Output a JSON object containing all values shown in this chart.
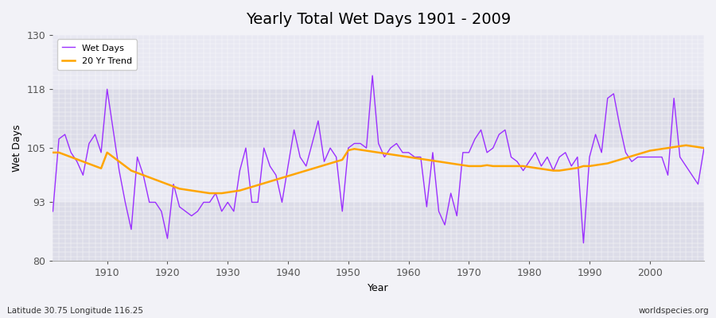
{
  "title": "Yearly Total Wet Days 1901 - 2009",
  "xlabel": "Year",
  "ylabel": "Wet Days",
  "lat_lon_label": "Latitude 30.75 Longitude 116.25",
  "watermark": "worldspecies.org",
  "ylim": [
    80,
    130
  ],
  "yticks": [
    80,
    93,
    105,
    118,
    130
  ],
  "wet_days_color": "#9B30FF",
  "trend_color": "#FFA500",
  "bg_color": "#F0F0F5",
  "plot_bg_color": "#E8E8F0",
  "band_color_light": "#DCDCE8",
  "band_color_dark": "#E8E8F0",
  "years": [
    1901,
    1902,
    1903,
    1904,
    1905,
    1906,
    1907,
    1908,
    1909,
    1910,
    1911,
    1912,
    1913,
    1914,
    1915,
    1916,
    1917,
    1918,
    1919,
    1920,
    1921,
    1922,
    1923,
    1924,
    1925,
    1926,
    1927,
    1928,
    1929,
    1930,
    1931,
    1932,
    1933,
    1934,
    1935,
    1936,
    1937,
    1938,
    1939,
    1940,
    1941,
    1942,
    1943,
    1944,
    1945,
    1946,
    1947,
    1948,
    1949,
    1950,
    1951,
    1952,
    1953,
    1954,
    1955,
    1956,
    1957,
    1958,
    1959,
    1960,
    1961,
    1962,
    1963,
    1964,
    1965,
    1966,
    1967,
    1968,
    1969,
    1970,
    1971,
    1972,
    1973,
    1974,
    1975,
    1976,
    1977,
    1978,
    1979,
    1980,
    1981,
    1982,
    1983,
    1984,
    1985,
    1986,
    1987,
    1988,
    1989,
    1990,
    1991,
    1992,
    1993,
    1994,
    1995,
    1996,
    1997,
    1998,
    1999,
    2000,
    2001,
    2002,
    2003,
    2004,
    2005,
    2006,
    2007,
    2008,
    2009
  ],
  "wet_days": [
    91,
    107,
    108,
    104,
    102,
    99,
    106,
    108,
    104,
    118,
    109,
    100,
    93,
    87,
    103,
    99,
    93,
    93,
    91,
    85,
    97,
    92,
    91,
    90,
    91,
    93,
    93,
    95,
    91,
    93,
    91,
    100,
    105,
    93,
    93,
    105,
    101,
    99,
    93,
    101,
    109,
    103,
    101,
    106,
    111,
    102,
    105,
    103,
    91,
    105,
    106,
    106,
    105,
    121,
    106,
    103,
    105,
    106,
    104,
    104,
    103,
    103,
    92,
    104,
    91,
    88,
    95,
    90,
    104,
    104,
    107,
    109,
    104,
    105,
    108,
    109,
    103,
    102,
    100,
    102,
    104,
    101,
    103,
    100,
    103,
    104,
    101,
    103,
    84,
    103,
    108,
    104,
    116,
    117,
    110,
    104,
    102,
    103,
    103,
    103,
    103,
    103,
    99,
    116,
    103,
    101,
    99,
    97,
    105
  ],
  "trend": [
    104.0,
    104.0,
    103.5,
    103.0,
    102.5,
    102.0,
    101.5,
    101.0,
    100.5,
    104.0,
    103.0,
    102.0,
    101.0,
    100.0,
    99.5,
    99.0,
    98.5,
    98.0,
    97.5,
    97.0,
    96.5,
    96.0,
    95.8,
    95.6,
    95.4,
    95.2,
    95.0,
    95.0,
    95.0,
    95.2,
    95.4,
    95.6,
    96.0,
    96.4,
    96.8,
    97.2,
    97.6,
    98.0,
    98.4,
    98.8,
    99.2,
    99.6,
    100.0,
    100.4,
    100.8,
    101.2,
    101.6,
    102.0,
    102.4,
    104.5,
    104.8,
    104.6,
    104.4,
    104.2,
    104.0,
    103.8,
    103.6,
    103.4,
    103.2,
    103.0,
    102.8,
    102.6,
    102.4,
    102.2,
    102.0,
    101.8,
    101.6,
    101.4,
    101.2,
    101.0,
    101.0,
    101.0,
    101.2,
    101.0,
    101.0,
    101.0,
    101.0,
    101.0,
    101.0,
    100.8,
    100.6,
    100.4,
    100.2,
    100.0,
    100.0,
    100.2,
    100.4,
    100.6,
    101.0,
    101.0,
    101.2,
    101.4,
    101.6,
    102.0,
    102.4,
    102.8,
    103.2,
    103.6,
    104.0,
    104.4,
    104.6,
    104.8,
    105.0,
    105.2,
    105.4,
    105.6,
    105.4,
    105.2,
    105.0
  ]
}
